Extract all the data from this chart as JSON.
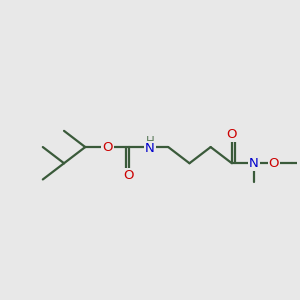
{
  "bg_color": "#e8e8e8",
  "bond_color": "#3a5a3a",
  "bond_width": 1.6,
  "atom_colors": {
    "O": "#cc0000",
    "N": "#0000cc",
    "C": "#3a5a3a",
    "H": "#5a7a5a"
  },
  "font_size_atoms": 9.5,
  "font_size_H": 8.5
}
